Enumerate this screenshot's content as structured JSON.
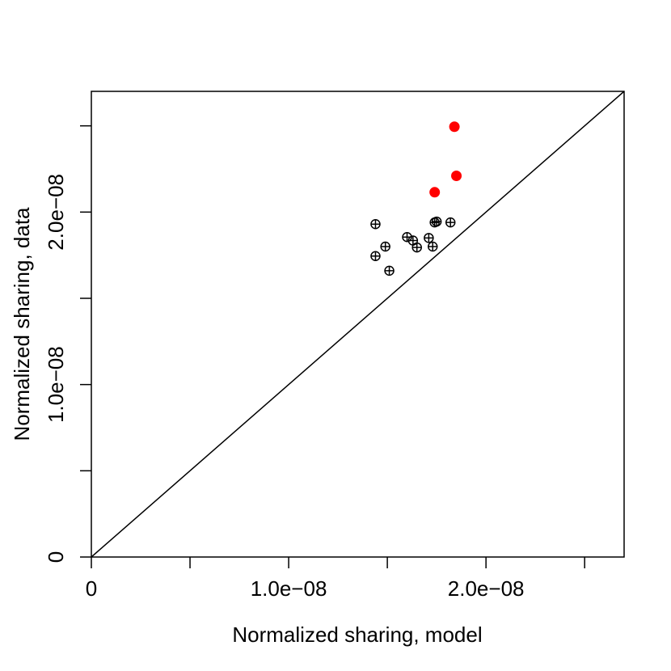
{
  "chart_data": {
    "type": "scatter",
    "xlabel": "Normalized sharing, model",
    "ylabel": "Normalized sharing, data",
    "xlim": [
      0,
      2.7e-08
    ],
    "ylim": [
      0,
      2.7e-08
    ],
    "x_ticks": [
      0,
      5e-09,
      1e-08,
      1.5e-08,
      2e-08,
      2.5e-08
    ],
    "x_tick_labels": [
      {
        "value": 0,
        "label": "0"
      },
      {
        "value": 1e-08,
        "label": "1.0e−08"
      },
      {
        "value": 2e-08,
        "label": "2.0e−08"
      }
    ],
    "y_ticks": [
      0,
      5e-09,
      1e-08,
      1.5e-08,
      2e-08,
      2.5e-08
    ],
    "y_tick_labels": [
      {
        "value": 0,
        "label": "0"
      },
      {
        "value": 1e-08,
        "label": "1.0e−08"
      },
      {
        "value": 2e-08,
        "label": "2.0e−08"
      }
    ],
    "reference_line": {
      "type": "identity",
      "label": "y = x"
    },
    "series": [
      {
        "name": "black",
        "marker": "circle-plus",
        "color": "#000000",
        "points": [
          [
            1.44e-08,
            1.93e-08
          ],
          [
            1.44e-08,
            1.745e-08
          ],
          [
            1.49e-08,
            1.8e-08
          ],
          [
            1.51e-08,
            1.66e-08
          ],
          [
            1.6e-08,
            1.855e-08
          ],
          [
            1.63e-08,
            1.835e-08
          ],
          [
            1.65e-08,
            1.795e-08
          ],
          [
            1.71e-08,
            1.85e-08
          ],
          [
            1.73e-08,
            1.8e-08
          ],
          [
            1.74e-08,
            1.94e-08
          ],
          [
            1.75e-08,
            1.945e-08
          ],
          [
            1.82e-08,
            1.94e-08
          ]
        ]
      },
      {
        "name": "red",
        "marker": "filled-circle",
        "color": "#ff0000",
        "points": [
          [
            1.74e-08,
            2.115e-08
          ],
          [
            1.84e-08,
            2.495e-08
          ],
          [
            1.85e-08,
            2.21e-08
          ]
        ]
      }
    ]
  }
}
